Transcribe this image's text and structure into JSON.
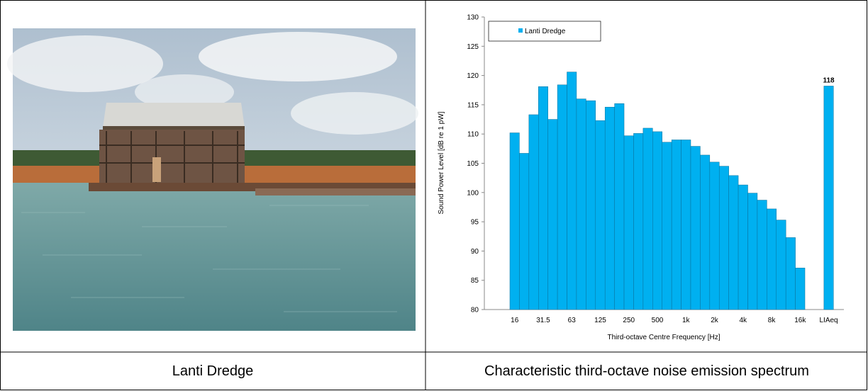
{
  "captions": [
    "Lanti Dredge",
    "Characteristic third-octave noise emission spectrum"
  ],
  "chart_data": {
    "type": "bar",
    "y_label": "Sound Power Level [dB re 1 pW]",
    "x_label": "Third-octave Centre Frequency  [Hz]",
    "categories": [
      "16",
      null,
      null,
      "31.5",
      null,
      null,
      "63",
      null,
      null,
      "125",
      null,
      null,
      "250",
      null,
      null,
      "500",
      null,
      null,
      "1k",
      null,
      null,
      "2k",
      null,
      null,
      "4k",
      null,
      null,
      "8k",
      null,
      null,
      "16k",
      null,
      null,
      "LIAeq"
    ],
    "series": [
      {
        "name": "Lanti Dredge",
        "color": "#00b0f0",
        "values": [
          110.2,
          106.7,
          113.3,
          118.1,
          112.5,
          118.4,
          120.6,
          116.0,
          115.7,
          112.3,
          114.6,
          115.2,
          109.7,
          110.1,
          111.0,
          110.4,
          108.6,
          109.0,
          109.0,
          107.9,
          106.4,
          105.2,
          104.5,
          102.9,
          101.3,
          99.9,
          98.7,
          97.2,
          95.3,
          92.3,
          87.1,
          null,
          null,
          118.2
        ],
        "value_labels": [
          null,
          null,
          null,
          null,
          null,
          null,
          null,
          null,
          null,
          null,
          null,
          null,
          null,
          null,
          null,
          null,
          null,
          null,
          null,
          null,
          null,
          null,
          null,
          null,
          null,
          null,
          null,
          null,
          null,
          null,
          null,
          null,
          null,
          "118"
        ]
      }
    ],
    "ylim": [
      80,
      130
    ],
    "yticks": [
      80,
      85,
      90,
      95,
      100,
      105,
      110,
      115,
      120,
      125,
      130
    ],
    "legend": "top-left",
    "grid": false
  }
}
